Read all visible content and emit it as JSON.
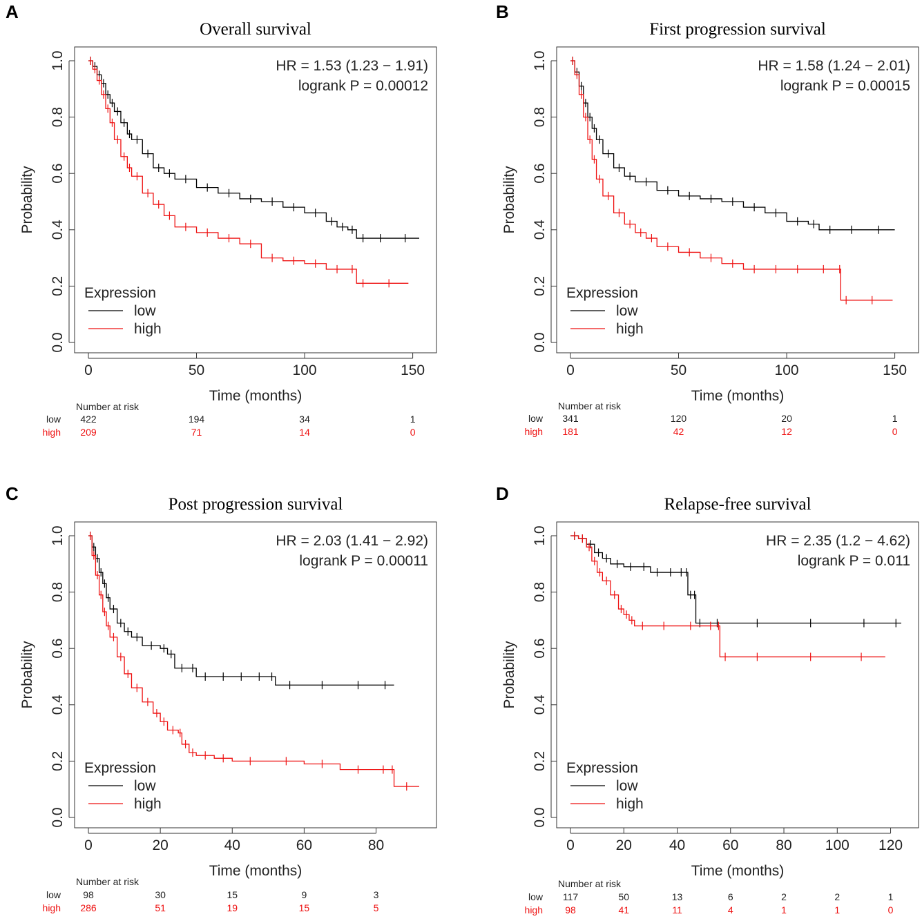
{
  "colors": {
    "low": "#000000",
    "high": "#ee1111",
    "axis": "#333333"
  },
  "chart_data": [
    {
      "type": "line",
      "panel": "A",
      "title": "Overall survival",
      "xlabel": "Time (months)",
      "ylabel": "Probability",
      "xlim": [
        0,
        153
      ],
      "ylim": [
        0,
        1
      ],
      "xticks": [
        "0",
        "50",
        "100",
        "150"
      ],
      "xtick_values": [
        0,
        50,
        100,
        150
      ],
      "yticks": [
        "0.0",
        "0.2",
        "0.4",
        "0.6",
        "0.8",
        "1.0"
      ],
      "yticks_values": [
        0,
        0.2,
        0.4,
        0.6,
        0.8,
        1.0
      ],
      "hr_text": "HR = 1.53 (1.23 − 1.91)",
      "p_text": "logrank P = 0.00012",
      "legend_title": "Expression",
      "legend_position": "bottom-left",
      "series": [
        {
          "name": "low",
          "x": [
            0,
            2,
            4,
            6,
            8,
            10,
            12,
            15,
            18,
            20,
            25,
            30,
            35,
            40,
            50,
            60,
            70,
            80,
            90,
            100,
            110,
            115,
            120,
            124,
            130,
            140,
            153
          ],
          "y": [
            1.0,
            0.98,
            0.95,
            0.92,
            0.88,
            0.85,
            0.82,
            0.78,
            0.74,
            0.72,
            0.67,
            0.62,
            0.6,
            0.58,
            0.55,
            0.53,
            0.51,
            0.5,
            0.48,
            0.46,
            0.43,
            0.41,
            0.4,
            0.37,
            0.37,
            0.37,
            0.37
          ]
        },
        {
          "name": "high",
          "x": [
            0,
            2,
            4,
            6,
            8,
            10,
            12,
            15,
            18,
            20,
            25,
            30,
            35,
            40,
            50,
            60,
            70,
            80,
            90,
            100,
            110,
            120,
            124,
            130,
            148
          ],
          "y": [
            1.0,
            0.97,
            0.93,
            0.88,
            0.83,
            0.78,
            0.72,
            0.66,
            0.62,
            0.59,
            0.53,
            0.49,
            0.45,
            0.41,
            0.39,
            0.37,
            0.35,
            0.3,
            0.29,
            0.28,
            0.26,
            0.26,
            0.21,
            0.21,
            0.21
          ]
        }
      ],
      "risk_label": "Number at risk",
      "risk_times": [
        0,
        50,
        100,
        150
      ],
      "risk_low": [
        "422",
        "194",
        "34",
        "1"
      ],
      "risk_high": [
        "209",
        "71",
        "14",
        "0"
      ]
    },
    {
      "type": "line",
      "panel": "B",
      "title": "First progression survival",
      "xlabel": "Time (months)",
      "ylabel": "Probability",
      "xlim": [
        0,
        153
      ],
      "ylim": [
        0,
        1
      ],
      "xticks": [
        "0",
        "50",
        "100",
        "150"
      ],
      "xtick_values": [
        0,
        50,
        100,
        150
      ],
      "yticks": [
        "0.0",
        "0.2",
        "0.4",
        "0.6",
        "0.8",
        "1.0"
      ],
      "yticks_values": [
        0,
        0.2,
        0.4,
        0.6,
        0.8,
        1.0
      ],
      "hr_text": "HR = 1.58 (1.24 − 2.01)",
      "p_text": "logrank P = 0.00015",
      "legend_title": "Expression",
      "legend_position": "bottom-left",
      "series": [
        {
          "name": "low",
          "x": [
            0,
            2,
            4,
            6,
            8,
            10,
            12,
            15,
            20,
            25,
            30,
            40,
            50,
            60,
            70,
            80,
            90,
            100,
            110,
            115,
            125,
            135,
            150
          ],
          "y": [
            1.0,
            0.96,
            0.91,
            0.85,
            0.8,
            0.76,
            0.72,
            0.67,
            0.62,
            0.59,
            0.57,
            0.54,
            0.52,
            0.51,
            0.5,
            0.48,
            0.46,
            0.43,
            0.42,
            0.4,
            0.4,
            0.4,
            0.4
          ]
        },
        {
          "name": "high",
          "x": [
            0,
            2,
            4,
            6,
            8,
            10,
            12,
            15,
            20,
            25,
            30,
            35,
            40,
            50,
            60,
            70,
            80,
            90,
            100,
            110,
            124,
            125,
            130,
            149
          ],
          "y": [
            1.0,
            0.95,
            0.88,
            0.8,
            0.72,
            0.65,
            0.58,
            0.52,
            0.46,
            0.42,
            0.39,
            0.37,
            0.34,
            0.32,
            0.3,
            0.28,
            0.26,
            0.26,
            0.26,
            0.26,
            0.26,
            0.15,
            0.15,
            0.15
          ]
        }
      ],
      "risk_label": "Number at risk",
      "risk_times": [
        0,
        50,
        100,
        150
      ],
      "risk_low": [
        "341",
        "120",
        "20",
        "1"
      ],
      "risk_high": [
        "181",
        "42",
        "12",
        "0"
      ]
    },
    {
      "type": "line",
      "panel": "C",
      "title": "Post progression survival",
      "xlabel": "Time (months)",
      "ylabel": "Probability",
      "xlim": [
        0,
        92
      ],
      "ylim": [
        0,
        1
      ],
      "xticks": [
        "0",
        "20",
        "40",
        "60",
        "80"
      ],
      "xtick_values": [
        0,
        20,
        40,
        60,
        80
      ],
      "yticks": [
        "0.0",
        "0.2",
        "0.4",
        "0.6",
        "0.8",
        "1.0"
      ],
      "yticks_values": [
        0,
        0.2,
        0.4,
        0.6,
        0.8,
        1.0
      ],
      "hr_text": "HR = 2.03 (1.41 − 2.92)",
      "p_text": "logrank P = 0.00011",
      "legend_title": "Expression",
      "legend_position": "bottom-left",
      "series": [
        {
          "name": "low",
          "x": [
            0,
            1,
            2,
            3,
            4,
            5,
            6,
            8,
            10,
            12,
            15,
            20,
            22,
            24,
            28,
            30,
            35,
            40,
            45,
            50,
            52,
            60,
            70,
            80,
            85
          ],
          "y": [
            1.0,
            0.96,
            0.92,
            0.87,
            0.83,
            0.78,
            0.74,
            0.69,
            0.66,
            0.64,
            0.61,
            0.6,
            0.58,
            0.53,
            0.53,
            0.5,
            0.5,
            0.5,
            0.5,
            0.5,
            0.47,
            0.47,
            0.47,
            0.47,
            0.47
          ]
        },
        {
          "name": "high",
          "x": [
            0,
            1,
            2,
            3,
            4,
            5,
            6,
            8,
            10,
            12,
            15,
            18,
            20,
            22,
            25,
            26,
            28,
            30,
            35,
            40,
            50,
            60,
            70,
            80,
            84,
            85,
            92
          ],
          "y": [
            1.0,
            0.93,
            0.86,
            0.79,
            0.73,
            0.68,
            0.64,
            0.57,
            0.51,
            0.46,
            0.41,
            0.37,
            0.34,
            0.31,
            0.3,
            0.26,
            0.23,
            0.22,
            0.21,
            0.2,
            0.2,
            0.19,
            0.17,
            0.17,
            0.17,
            0.11,
            0.11
          ]
        }
      ],
      "risk_label": "Number at risk",
      "risk_times": [
        0,
        20,
        40,
        60,
        80
      ],
      "risk_low": [
        "98",
        "30",
        "15",
        "9",
        "3"
      ],
      "risk_high": [
        "286",
        "51",
        "19",
        "15",
        "5"
      ]
    },
    {
      "type": "line",
      "panel": "D",
      "title": "Relapse-free survival",
      "xlabel": "Time (months)",
      "ylabel": "Probability",
      "xlim": [
        0,
        124
      ],
      "ylim": [
        0,
        1
      ],
      "xticks": [
        "0",
        "20",
        "40",
        "60",
        "80",
        "100",
        "120"
      ],
      "xtick_values": [
        0,
        20,
        40,
        60,
        80,
        100,
        120
      ],
      "yticks": [
        "0.0",
        "0.2",
        "0.4",
        "0.6",
        "0.8",
        "1.0"
      ],
      "yticks_values": [
        0,
        0.2,
        0.4,
        0.6,
        0.8,
        1.0
      ],
      "hr_text": "HR = 2.35 (1.2 − 4.62)",
      "p_text": "logrank P = 0.011",
      "legend_title": "Expression",
      "legend_position": "bottom-left",
      "series": [
        {
          "name": "low",
          "x": [
            0,
            3,
            6,
            9,
            12,
            15,
            20,
            25,
            30,
            35,
            40,
            43,
            44,
            46,
            47,
            50,
            60,
            80,
            100,
            120,
            124
          ],
          "y": [
            1.0,
            0.99,
            0.97,
            0.94,
            0.92,
            0.9,
            0.89,
            0.89,
            0.87,
            0.87,
            0.87,
            0.87,
            0.79,
            0.79,
            0.69,
            0.69,
            0.69,
            0.69,
            0.69,
            0.69,
            0.69
          ]
        },
        {
          "name": "high",
          "x": [
            0,
            3,
            6,
            8,
            10,
            12,
            15,
            18,
            20,
            22,
            24,
            30,
            40,
            50,
            55,
            56,
            60,
            80,
            100,
            118
          ],
          "y": [
            1.0,
            0.99,
            0.96,
            0.91,
            0.87,
            0.84,
            0.79,
            0.74,
            0.72,
            0.7,
            0.68,
            0.68,
            0.68,
            0.68,
            0.68,
            0.57,
            0.57,
            0.57,
            0.57,
            0.57
          ]
        }
      ],
      "risk_label": "Number at risk",
      "risk_times": [
        0,
        20,
        40,
        60,
        80,
        100,
        120
      ],
      "risk_low": [
        "117",
        "50",
        "13",
        "6",
        "2",
        "2",
        "1"
      ],
      "risk_high": [
        "98",
        "41",
        "11",
        "4",
        "1",
        "1",
        "0"
      ]
    }
  ]
}
